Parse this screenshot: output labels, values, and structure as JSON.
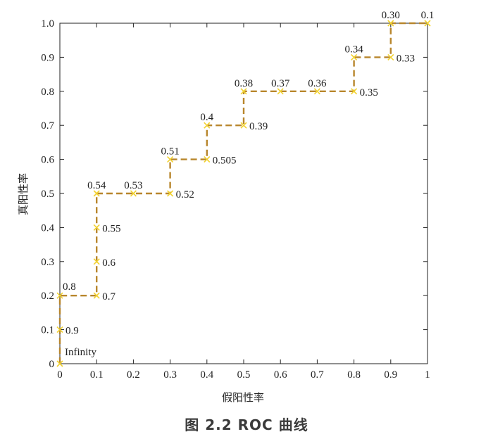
{
  "caption": "图 2.2   ROC 曲线",
  "colors": {
    "curve": "#b8862c",
    "marker": "#f2d230",
    "axis": "#222222"
  },
  "chart_data": {
    "type": "line",
    "title": "",
    "xlabel": "假阳性率",
    "ylabel": "真阳性率",
    "xlim": [
      0,
      1
    ],
    "ylim": [
      0,
      1
    ],
    "grid": false,
    "line_style": "dashed",
    "x_ticks": [
      0,
      0.1,
      0.2,
      0.3,
      0.4,
      0.5,
      0.6,
      0.7,
      0.8,
      0.9,
      1
    ],
    "x_tick_labels": [
      "0",
      "0.1",
      "0.2",
      "0.3",
      "0.4",
      "0.5",
      "0.6",
      "0.7",
      "0.8",
      "0.9",
      "1"
    ],
    "y_ticks": [
      0,
      0.1,
      0.2,
      0.3,
      0.4,
      0.5,
      0.6,
      0.7,
      0.8,
      0.9,
      1.0
    ],
    "y_tick_labels": [
      "0",
      "0.1",
      "0.2",
      "0.3",
      "0.4",
      "0.5",
      "0.6",
      "0.7",
      "0.8",
      "0.9",
      "1.0"
    ],
    "points": [
      {
        "x": 0,
        "y": 0,
        "label": "Infinity",
        "pos": "above-right"
      },
      {
        "x": 0,
        "y": 0.1,
        "label": "0.9",
        "pos": "right"
      },
      {
        "x": 0,
        "y": 0.2,
        "label": "0.8",
        "pos": "above-right"
      },
      {
        "x": 0.1,
        "y": 0.2,
        "label": "0.7",
        "pos": "right"
      },
      {
        "x": 0.1,
        "y": 0.3,
        "label": "0.6",
        "pos": "right"
      },
      {
        "x": 0.1,
        "y": 0.4,
        "label": "0.55",
        "pos": "right"
      },
      {
        "x": 0.1,
        "y": 0.5,
        "label": "0.54",
        "pos": "above"
      },
      {
        "x": 0.2,
        "y": 0.5,
        "label": "0.53",
        "pos": "above"
      },
      {
        "x": 0.3,
        "y": 0.5,
        "label": "0.52",
        "pos": "right"
      },
      {
        "x": 0.3,
        "y": 0.6,
        "label": "0.51",
        "pos": "above"
      },
      {
        "x": 0.4,
        "y": 0.6,
        "label": "0.505",
        "pos": "right"
      },
      {
        "x": 0.4,
        "y": 0.7,
        "label": "0.4",
        "pos": "above"
      },
      {
        "x": 0.5,
        "y": 0.7,
        "label": "0.39",
        "pos": "right"
      },
      {
        "x": 0.5,
        "y": 0.8,
        "label": "0.38",
        "pos": "above"
      },
      {
        "x": 0.6,
        "y": 0.8,
        "label": "0.37",
        "pos": "above"
      },
      {
        "x": 0.7,
        "y": 0.8,
        "label": "0.36",
        "pos": "above"
      },
      {
        "x": 0.8,
        "y": 0.8,
        "label": "0.35",
        "pos": "right"
      },
      {
        "x": 0.8,
        "y": 0.9,
        "label": "0.34",
        "pos": "above"
      },
      {
        "x": 0.9,
        "y": 0.9,
        "label": "0.33",
        "pos": "right"
      },
      {
        "x": 0.9,
        "y": 1.0,
        "label": "0.30",
        "pos": "above"
      },
      {
        "x": 1.0,
        "y": 1.0,
        "label": "0.1",
        "pos": "above"
      }
    ]
  }
}
